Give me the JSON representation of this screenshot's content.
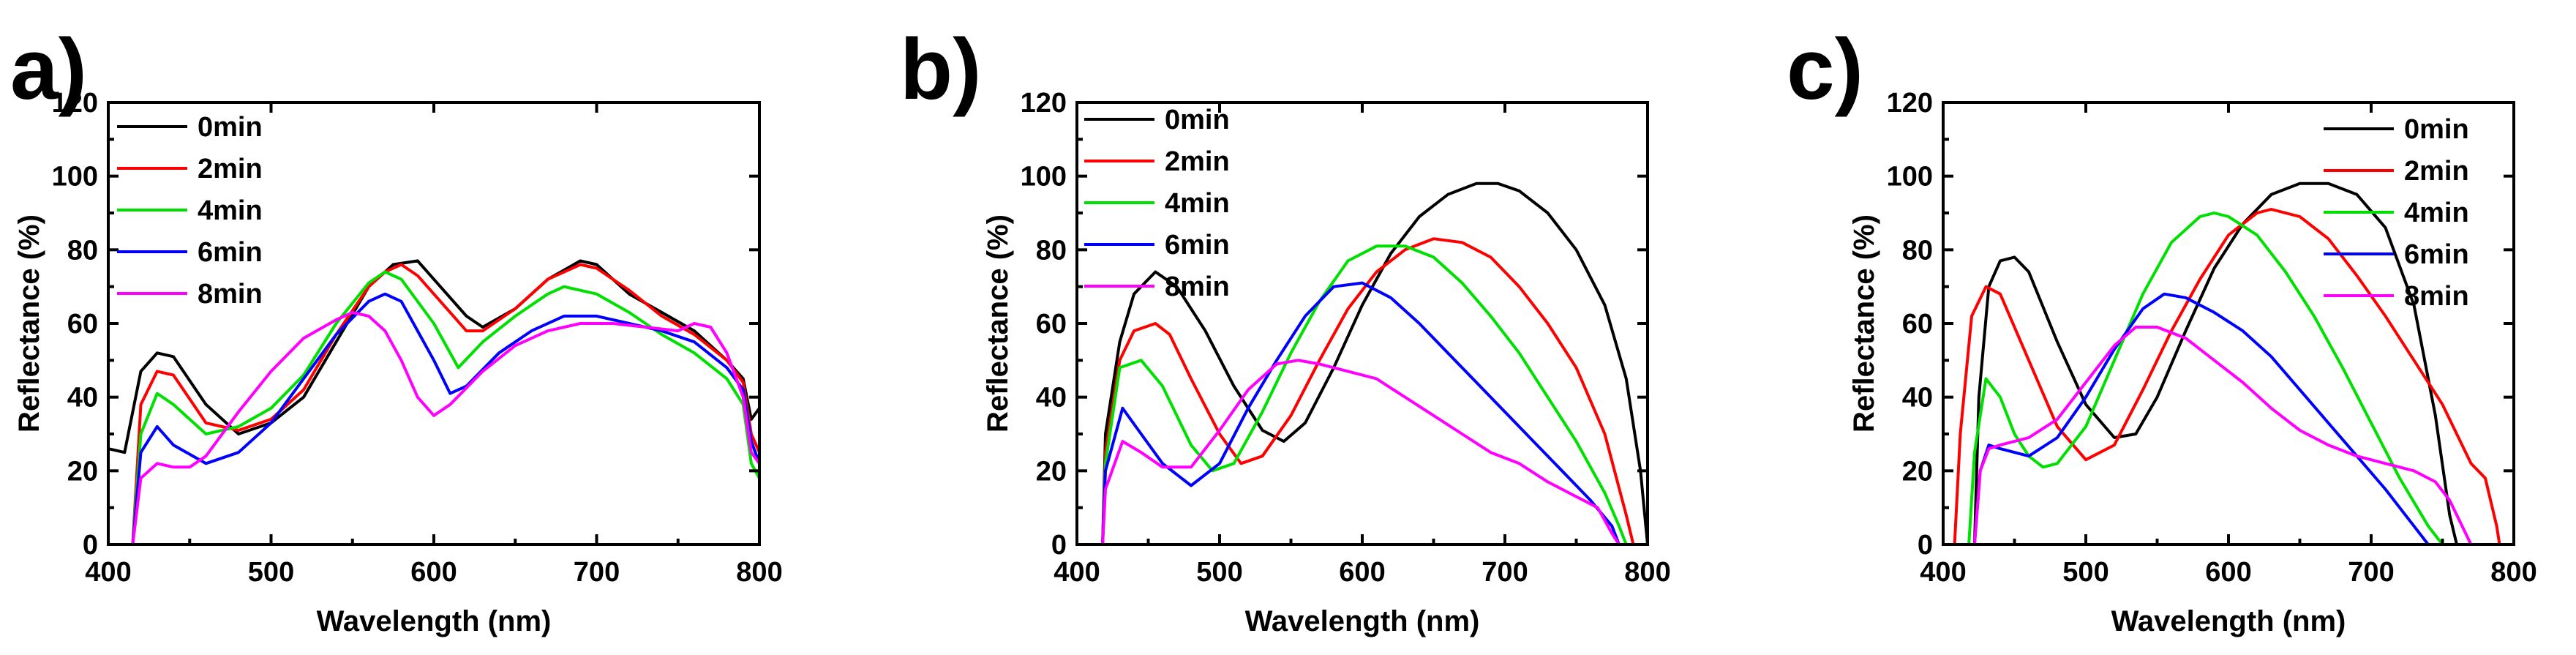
{
  "chart_data": [
    {
      "id": "a",
      "panel_label": "a)",
      "type": "line",
      "xlabel": "Wavelength (nm)",
      "ylabel": "Reflectance (%)",
      "xlim": [
        400,
        800
      ],
      "ylim": [
        0,
        120
      ],
      "xticks": [
        400,
        500,
        600,
        700,
        800
      ],
      "yticks": [
        0,
        20,
        40,
        60,
        80,
        100,
        120
      ],
      "legend_position": "top-left",
      "series": [
        {
          "name": "0min",
          "color": "#000000",
          "x": [
            400,
            410,
            420,
            430,
            440,
            460,
            480,
            500,
            520,
            540,
            560,
            575,
            590,
            600,
            620,
            630,
            650,
            670,
            690,
            700,
            720,
            740,
            760,
            780,
            790,
            795,
            800
          ],
          "y": [
            26,
            25,
            47,
            52,
            51,
            38,
            30,
            33,
            40,
            55,
            70,
            76,
            77,
            72,
            62,
            59,
            64,
            72,
            77,
            76,
            68,
            63,
            58,
            50,
            45,
            34,
            37
          ]
        },
        {
          "name": "2min",
          "color": "#ff0000",
          "x": [
            415,
            420,
            430,
            440,
            460,
            480,
            500,
            520,
            540,
            560,
            570,
            580,
            590,
            600,
            620,
            630,
            650,
            670,
            690,
            700,
            720,
            740,
            760,
            780,
            790,
            795,
            800
          ],
          "y": [
            0,
            38,
            47,
            46,
            33,
            31,
            34,
            42,
            57,
            70,
            74,
            76,
            73,
            68,
            58,
            58,
            64,
            72,
            76,
            75,
            69,
            62,
            57,
            50,
            44,
            30,
            25
          ]
        },
        {
          "name": "4min",
          "color": "#00e000",
          "x": [
            415,
            420,
            430,
            440,
            460,
            480,
            500,
            520,
            540,
            560,
            570,
            580,
            600,
            615,
            630,
            650,
            670,
            680,
            700,
            720,
            740,
            760,
            780,
            790,
            795,
            800
          ],
          "y": [
            0,
            30,
            41,
            38,
            30,
            32,
            37,
            46,
            60,
            71,
            74,
            72,
            60,
            48,
            55,
            62,
            68,
            70,
            68,
            63,
            57,
            52,
            45,
            38,
            22,
            18
          ]
        },
        {
          "name": "6min",
          "color": "#0000ff",
          "x": [
            415,
            420,
            430,
            440,
            460,
            480,
            500,
            520,
            540,
            560,
            570,
            580,
            590,
            600,
            610,
            620,
            640,
            660,
            680,
            700,
            720,
            740,
            760,
            780,
            790,
            795,
            800
          ],
          "y": [
            0,
            25,
            32,
            27,
            22,
            25,
            33,
            45,
            57,
            66,
            68,
            66,
            58,
            50,
            41,
            43,
            52,
            58,
            62,
            62,
            60,
            58,
            55,
            48,
            42,
            28,
            22
          ]
        },
        {
          "name": "8min",
          "color": "#ff00ff",
          "x": [
            415,
            420,
            430,
            440,
            450,
            460,
            480,
            500,
            520,
            540,
            550,
            560,
            570,
            580,
            590,
            600,
            610,
            630,
            650,
            670,
            690,
            710,
            730,
            750,
            760,
            770,
            780,
            790,
            795,
            800
          ],
          "y": [
            0,
            18,
            22,
            21,
            21,
            24,
            36,
            47,
            56,
            61,
            63,
            62,
            58,
            50,
            40,
            35,
            38,
            47,
            54,
            58,
            60,
            60,
            59,
            58,
            60,
            59,
            52,
            40,
            25,
            22
          ]
        }
      ]
    },
    {
      "id": "b",
      "panel_label": "b)",
      "type": "line",
      "xlabel": "Wavelength (nm)",
      "ylabel": "Reflectance (%)",
      "xlim": [
        400,
        800
      ],
      "ylim": [
        0,
        120
      ],
      "xticks": [
        400,
        500,
        600,
        700,
        800
      ],
      "yticks": [
        0,
        20,
        40,
        60,
        80,
        100,
        120
      ],
      "legend_position": "top-left",
      "series": [
        {
          "name": "0min",
          "color": "#000000",
          "x": [
            418,
            420,
            430,
            440,
            455,
            470,
            490,
            510,
            530,
            545,
            560,
            580,
            600,
            620,
            640,
            660,
            680,
            695,
            710,
            730,
            750,
            770,
            785,
            795,
            800
          ],
          "y": [
            0,
            30,
            55,
            68,
            74,
            70,
            58,
            43,
            31,
            28,
            33,
            48,
            65,
            79,
            89,
            95,
            98,
            98,
            96,
            90,
            80,
            65,
            45,
            20,
            0
          ]
        },
        {
          "name": "2min",
          "color": "#ff0000",
          "x": [
            418,
            420,
            430,
            440,
            455,
            465,
            480,
            500,
            515,
            530,
            550,
            570,
            590,
            610,
            630,
            650,
            670,
            690,
            710,
            730,
            750,
            770,
            785,
            790
          ],
          "y": [
            0,
            25,
            50,
            58,
            60,
            57,
            45,
            30,
            22,
            24,
            35,
            50,
            64,
            74,
            80,
            83,
            82,
            78,
            70,
            60,
            48,
            30,
            8,
            0
          ]
        },
        {
          "name": "4min",
          "color": "#00e000",
          "x": [
            418,
            420,
            430,
            445,
            460,
            480,
            495,
            510,
            530,
            550,
            570,
            590,
            610,
            630,
            650,
            670,
            690,
            710,
            730,
            750,
            770,
            780,
            785
          ],
          "y": [
            0,
            22,
            48,
            50,
            43,
            27,
            20,
            22,
            36,
            52,
            66,
            77,
            81,
            81,
            78,
            71,
            62,
            52,
            40,
            28,
            14,
            5,
            0
          ]
        },
        {
          "name": "6min",
          "color": "#0000ff",
          "x": [
            418,
            420,
            432,
            445,
            460,
            480,
            500,
            520,
            540,
            560,
            580,
            600,
            620,
            640,
            660,
            680,
            700,
            720,
            740,
            760,
            775,
            780
          ],
          "y": [
            0,
            20,
            37,
            30,
            22,
            16,
            22,
            37,
            50,
            62,
            70,
            71,
            67,
            60,
            52,
            44,
            36,
            28,
            20,
            12,
            5,
            0
          ]
        },
        {
          "name": "8min",
          "color": "#ff00ff",
          "x": [
            418,
            420,
            432,
            445,
            460,
            480,
            500,
            520,
            540,
            555,
            570,
            590,
            610,
            630,
            650,
            670,
            690,
            710,
            730,
            750,
            765,
            775,
            780
          ],
          "y": [
            0,
            15,
            28,
            25,
            21,
            21,
            31,
            42,
            49,
            50,
            49,
            47,
            45,
            40,
            35,
            30,
            25,
            22,
            17,
            13,
            10,
            3,
            0
          ]
        }
      ]
    },
    {
      "id": "c",
      "panel_label": "c)",
      "type": "line",
      "xlabel": "Wavelength (nm)",
      "ylabel": "Reflectance (%)",
      "xlim": [
        400,
        800
      ],
      "ylim": [
        0,
        120
      ],
      "xticks": [
        400,
        500,
        600,
        700,
        800
      ],
      "yticks": [
        0,
        20,
        40,
        60,
        80,
        100,
        120
      ],
      "legend_position": "top-right",
      "series": [
        {
          "name": "0min",
          "color": "#000000",
          "x": [
            422,
            425,
            432,
            440,
            450,
            460,
            480,
            500,
            520,
            535,
            550,
            570,
            590,
            610,
            630,
            650,
            670,
            690,
            710,
            730,
            745,
            755,
            760
          ],
          "y": [
            0,
            40,
            70,
            77,
            78,
            74,
            55,
            38,
            29,
            30,
            40,
            58,
            75,
            87,
            95,
            98,
            98,
            95,
            86,
            65,
            35,
            8,
            0
          ]
        },
        {
          "name": "2min",
          "color": "#ff0000",
          "x": [
            408,
            412,
            420,
            430,
            440,
            460,
            480,
            500,
            520,
            540,
            560,
            580,
            600,
            620,
            630,
            650,
            670,
            690,
            710,
            730,
            750,
            760,
            770,
            780,
            788,
            790
          ],
          "y": [
            0,
            30,
            62,
            70,
            68,
            50,
            32,
            23,
            27,
            42,
            58,
            72,
            84,
            90,
            91,
            89,
            83,
            73,
            62,
            50,
            38,
            30,
            22,
            18,
            5,
            0
          ]
        },
        {
          "name": "4min",
          "color": "#00e000",
          "x": [
            418,
            422,
            430,
            440,
            450,
            460,
            470,
            480,
            500,
            520,
            540,
            560,
            580,
            590,
            600,
            620,
            640,
            660,
            680,
            700,
            720,
            740,
            750
          ],
          "y": [
            0,
            25,
            45,
            40,
            30,
            24,
            21,
            22,
            32,
            50,
            68,
            82,
            89,
            90,
            89,
            84,
            74,
            62,
            48,
            33,
            18,
            5,
            0
          ]
        },
        {
          "name": "6min",
          "color": "#0000ff",
          "x": [
            422,
            426,
            432,
            440,
            460,
            480,
            500,
            520,
            540,
            555,
            570,
            590,
            610,
            630,
            650,
            670,
            690,
            710,
            730,
            740
          ],
          "y": [
            0,
            20,
            27,
            26,
            24,
            29,
            40,
            53,
            64,
            68,
            67,
            63,
            58,
            51,
            42,
            33,
            24,
            15,
            5,
            0
          ]
        },
        {
          "name": "8min",
          "color": "#ff00ff",
          "x": [
            422,
            426,
            432,
            440,
            460,
            480,
            500,
            520,
            535,
            550,
            570,
            590,
            610,
            630,
            650,
            670,
            690,
            710,
            730,
            745,
            755,
            765,
            770
          ],
          "y": [
            0,
            20,
            26,
            27,
            29,
            34,
            44,
            54,
            59,
            59,
            56,
            50,
            44,
            37,
            31,
            27,
            24,
            22,
            20,
            17,
            12,
            4,
            0
          ]
        }
      ]
    }
  ]
}
